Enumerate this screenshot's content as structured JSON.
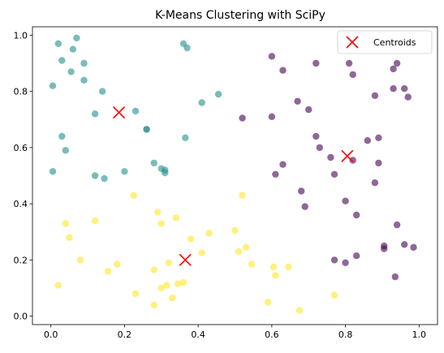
{
  "chart_data": {
    "type": "scatter",
    "title": "K-Means Clustering with SciPy",
    "xlabel": "",
    "ylabel": "",
    "xlim": [
      -0.05,
      1.05
    ],
    "ylim": [
      -0.03,
      1.03
    ],
    "xticks": [
      "0.0",
      "0.2",
      "0.4",
      "0.6",
      "0.8",
      "1.0"
    ],
    "yticks": [
      "0.0",
      "0.2",
      "0.4",
      "0.6",
      "0.8",
      "1.0"
    ],
    "grid": false,
    "legend": {
      "position": "top-right",
      "entries": [
        "Centroids"
      ]
    },
    "colors": {
      "cluster_teal": "#21908d",
      "cluster_purple": "#440154",
      "cluster_yellow": "#fde725",
      "centroid": "#ff0000"
    },
    "series": [
      {
        "color_key": "cluster_teal",
        "points": [
          [
            0.02,
            0.97
          ],
          [
            0.06,
            0.95
          ],
          [
            0.07,
            0.99
          ],
          [
            0.03,
            0.91
          ],
          [
            0.09,
            0.9
          ],
          [
            0.055,
            0.87
          ],
          [
            0.005,
            0.82
          ],
          [
            0.09,
            0.84
          ],
          [
            0.14,
            0.8
          ],
          [
            0.12,
            0.72
          ],
          [
            0.23,
            0.73
          ],
          [
            0.26,
            0.665
          ],
          [
            0.26,
            0.665
          ],
          [
            0.36,
            0.97
          ],
          [
            0.37,
            0.955
          ],
          [
            0.41,
            0.76
          ],
          [
            0.455,
            0.79
          ],
          [
            0.365,
            0.635
          ],
          [
            0.03,
            0.64
          ],
          [
            0.04,
            0.59
          ],
          [
            0.005,
            0.515
          ],
          [
            0.12,
            0.5
          ],
          [
            0.145,
            0.49
          ],
          [
            0.2,
            0.515
          ],
          [
            0.28,
            0.545
          ],
          [
            0.3,
            0.525
          ],
          [
            0.31,
            0.52
          ],
          [
            0.31,
            0.51
          ]
        ]
      },
      {
        "color_key": "cluster_purple",
        "points": [
          [
            0.6,
            0.925
          ],
          [
            0.63,
            0.875
          ],
          [
            0.72,
            0.9
          ],
          [
            0.81,
            0.9
          ],
          [
            0.82,
            0.86
          ],
          [
            0.93,
            0.88
          ],
          [
            0.94,
            0.9
          ],
          [
            0.93,
            0.81
          ],
          [
            0.96,
            0.81
          ],
          [
            0.97,
            0.78
          ],
          [
            0.88,
            0.785
          ],
          [
            0.67,
            0.765
          ],
          [
            0.7,
            0.735
          ],
          [
            0.6,
            0.71
          ],
          [
            0.52,
            0.705
          ],
          [
            0.72,
            0.64
          ],
          [
            0.73,
            0.6
          ],
          [
            0.76,
            0.565
          ],
          [
            0.82,
            0.555
          ],
          [
            0.86,
            0.625
          ],
          [
            0.89,
            0.635
          ],
          [
            0.89,
            0.545
          ],
          [
            0.88,
            0.475
          ],
          [
            0.63,
            0.54
          ],
          [
            0.61,
            0.505
          ],
          [
            0.77,
            0.505
          ],
          [
            0.68,
            0.445
          ],
          [
            0.69,
            0.39
          ],
          [
            0.8,
            0.41
          ],
          [
            0.83,
            0.36
          ],
          [
            0.94,
            0.325
          ],
          [
            0.96,
            0.255
          ],
          [
            0.905,
            0.25
          ],
          [
            0.905,
            0.24
          ],
          [
            0.985,
            0.245
          ],
          [
            0.83,
            0.215
          ],
          [
            0.77,
            0.2
          ],
          [
            0.8,
            0.19
          ],
          [
            0.935,
            0.14
          ]
        ]
      },
      {
        "color_key": "cluster_yellow",
        "points": [
          [
            0.225,
            0.43
          ],
          [
            0.52,
            0.43
          ],
          [
            0.04,
            0.33
          ],
          [
            0.05,
            0.28
          ],
          [
            0.12,
            0.34
          ],
          [
            0.29,
            0.37
          ],
          [
            0.3,
            0.33
          ],
          [
            0.34,
            0.35
          ],
          [
            0.43,
            0.295
          ],
          [
            0.38,
            0.275
          ],
          [
            0.5,
            0.305
          ],
          [
            0.53,
            0.245
          ],
          [
            0.51,
            0.23
          ],
          [
            0.41,
            0.225
          ],
          [
            0.08,
            0.2
          ],
          [
            0.18,
            0.185
          ],
          [
            0.155,
            0.16
          ],
          [
            0.32,
            0.19
          ],
          [
            0.28,
            0.165
          ],
          [
            0.545,
            0.185
          ],
          [
            0.605,
            0.175
          ],
          [
            0.645,
            0.175
          ],
          [
            0.61,
            0.145
          ],
          [
            0.36,
            0.12
          ],
          [
            0.345,
            0.115
          ],
          [
            0.315,
            0.11
          ],
          [
            0.3,
            0.1
          ],
          [
            0.02,
            0.11
          ],
          [
            0.23,
            0.08
          ],
          [
            0.33,
            0.065
          ],
          [
            0.28,
            0.04
          ],
          [
            0.59,
            0.05
          ],
          [
            0.77,
            0.075
          ],
          [
            0.675,
            0.02
          ]
        ]
      }
    ],
    "centroids": [
      [
        0.185,
        0.725
      ],
      [
        0.805,
        0.57
      ],
      [
        0.365,
        0.2
      ]
    ]
  }
}
